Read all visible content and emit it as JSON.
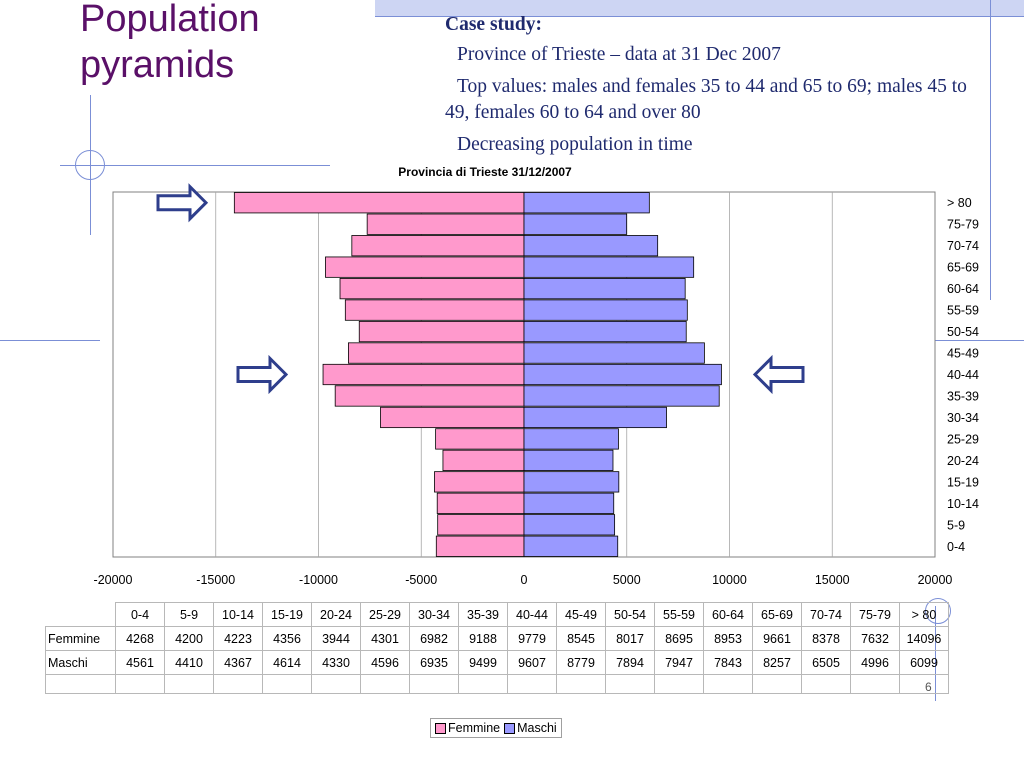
{
  "slide": {
    "title_lines": [
      "Population",
      "pyramids"
    ],
    "case_study": "Case study:",
    "bullet_glyph": "",
    "bullets": [
      "Province of Trieste – data at 31 Dec 2007",
      "Top values: males and females 35 to 44 and 65 to 69; males 45 to 49, females 60 to  64 and over 80",
      "Decreasing population in time"
    ],
    "page_number": "6"
  },
  "colors": {
    "title": "#5a1068",
    "text": "#1f2a6e",
    "femmine": "#ff99cc",
    "maschi": "#9999ff",
    "arrow": "#2e3e8c",
    "deco_line": "#7b8fd6",
    "deco_bar": "#cdd5f3"
  },
  "chart_data": {
    "type": "bar",
    "orientation": "horizontal-pyramid",
    "title": "Provincia di Trieste 31/12/2007",
    "categories": [
      "0-4",
      "5-9",
      "10-14",
      "15-19",
      "20-24",
      "25-29",
      "30-34",
      "35-39",
      "40-44",
      "45-49",
      "50-54",
      "55-59",
      "60-64",
      "65-69",
      "70-74",
      "75-79",
      "> 80"
    ],
    "series": [
      {
        "name": "Femmine",
        "values": [
          4268,
          4200,
          4223,
          4356,
          3944,
          4301,
          6982,
          9188,
          9779,
          8545,
          8017,
          8695,
          8953,
          9661,
          8378,
          7632,
          14096
        ],
        "color": "#ff99cc",
        "side": "left"
      },
      {
        "name": "Maschi",
        "values": [
          4561,
          4410,
          4367,
          4614,
          4330,
          4596,
          6935,
          9499,
          9607,
          8779,
          7894,
          7947,
          7843,
          8257,
          6505,
          4996,
          6099
        ],
        "color": "#9999ff",
        "side": "right"
      }
    ],
    "x_ticks": [
      "-20000",
      "-15000",
      "-10000",
      "-5000",
      "0",
      "5000",
      "10000",
      "15000",
      "20000"
    ],
    "xlim": [
      -20000,
      20000
    ],
    "grid": true,
    "legend": "bottom",
    "data_table": true,
    "arrows": [
      {
        "direction": "right",
        "side": "left",
        "category": "> 80"
      },
      {
        "direction": "right",
        "side": "left",
        "category": "40-44"
      },
      {
        "direction": "left",
        "side": "right",
        "category": "40-44"
      }
    ]
  }
}
